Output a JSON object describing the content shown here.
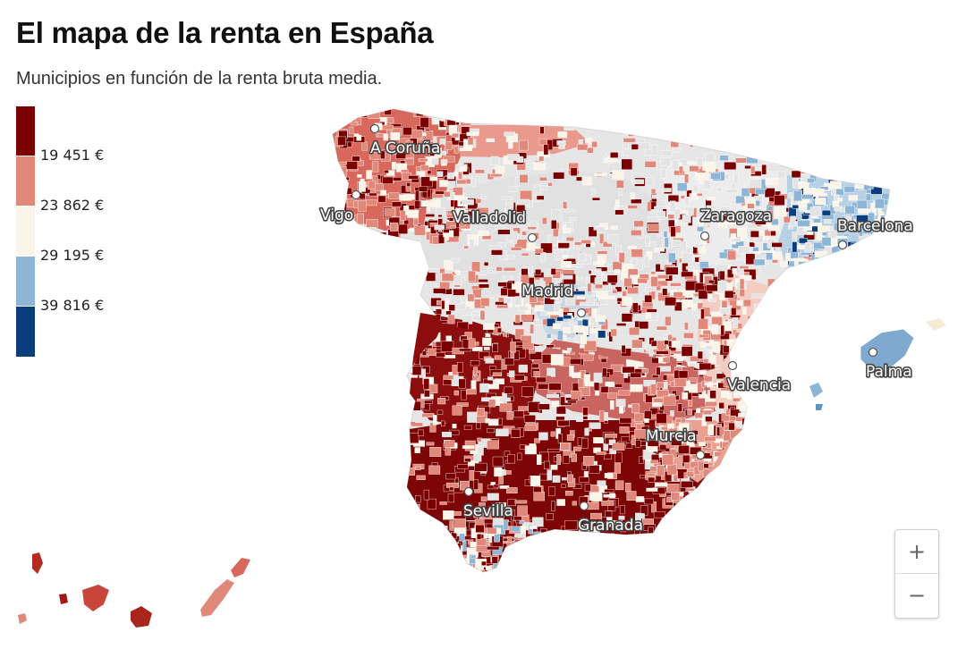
{
  "title": "El mapa de la renta en España",
  "subtitle": "Municipios en función de la renta bruta media.",
  "legend": {
    "colors": [
      "#7a0000",
      "#e0887a",
      "#fbf5e9",
      "#8cb5d6",
      "#0b3d7c"
    ],
    "labels": [
      "19 451 €",
      "23 862 €",
      "29 195 €",
      "39 816 €"
    ]
  },
  "map": {
    "cities": [
      {
        "name": "A Coruña"
      },
      {
        "name": "Vigo"
      },
      {
        "name": "Valladolid"
      },
      {
        "name": "Zaragoza"
      },
      {
        "name": "Barcelona"
      },
      {
        "name": "Madrid"
      },
      {
        "name": "Palma"
      },
      {
        "name": "Valencia"
      },
      {
        "name": "Murcia"
      },
      {
        "name": "Sevilla"
      },
      {
        "name": "Granada"
      }
    ],
    "nodata_color": "#e4e4e4"
  },
  "zoom": {
    "in_label": "+",
    "out_label": "−"
  }
}
